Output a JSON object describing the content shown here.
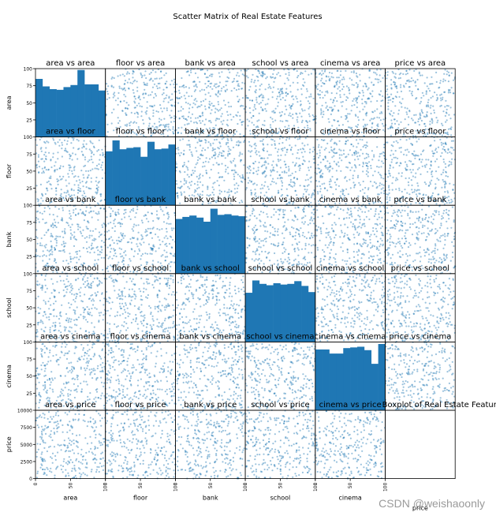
{
  "chart_data": {
    "type": "scatter",
    "title": "Scatter Matrix of Real Estate Features",
    "variables": [
      "area",
      "floor",
      "bank",
      "school",
      "cinema",
      "price"
    ],
    "axis_labels": [
      "area",
      "floor",
      "bank",
      "school",
      "cinema",
      "price"
    ],
    "ranges": [
      [
        0,
        100
      ],
      [
        0,
        100
      ],
      [
        0,
        100
      ],
      [
        0,
        100
      ],
      [
        0,
        100
      ],
      [
        0,
        10000
      ]
    ],
    "y_ticks": {
      "feature": [
        "25",
        "50",
        "75",
        "100"
      ],
      "price": [
        "0",
        "2500",
        "5000",
        "7500",
        "10000"
      ]
    },
    "x_ticks": {
      "feature": [
        "0",
        "50",
        "100"
      ]
    },
    "point_color": "#1f77b4",
    "grid": false,
    "diagonal": "histogram",
    "histogram_bins": 10,
    "histograms": {
      "area": [
        85,
        74,
        70,
        69,
        73,
        76,
        98,
        77,
        77,
        68
      ],
      "floor": [
        79,
        95,
        82,
        84,
        85,
        71,
        93,
        82,
        83,
        89
      ],
      "bank": [
        80,
        83,
        85,
        82,
        76,
        95,
        86,
        87,
        85,
        84
      ],
      "school": [
        72,
        90,
        85,
        83,
        86,
        84,
        85,
        89,
        82,
        73
      ],
      "cinema": [
        89,
        89,
        83,
        83,
        91,
        92,
        93,
        88,
        68,
        97
      ]
    },
    "subplot_titles": [
      [
        "area vs area",
        "floor vs area",
        "bank vs area",
        "school vs area",
        "cinema vs area",
        "price vs area"
      ],
      [
        "area vs floor",
        "floor vs floor",
        "bank vs floor",
        "school vs floor",
        "cinema vs floor",
        "price vs floor"
      ],
      [
        "area vs bank",
        "floor vs bank",
        "bank vs bank",
        "school vs bank",
        "cinema vs bank",
        "price vs bank"
      ],
      [
        "area vs school",
        "floor vs school",
        "bank vs school",
        "school vs school",
        "cinema vs school",
        "price vs school"
      ],
      [
        "area vs cinema",
        "floor vs cinema",
        "bank vs cinema",
        "school vs cinema",
        "cinema vs cinema",
        "price vs cinema"
      ],
      [
        "area vs price",
        "floor vs price",
        "bank vs price",
        "school vs price",
        "cinema vs price",
        "Boxplot of Real Estate Features"
      ]
    ]
  },
  "watermark": "CSDN @weishaoonly"
}
